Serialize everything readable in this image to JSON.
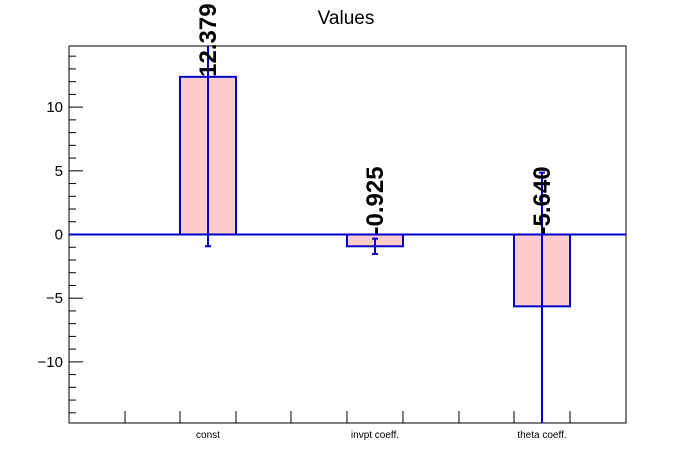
{
  "chart_data": {
    "type": "bar",
    "title": "Values",
    "categories": [
      "const",
      "invpt coeff.",
      "theta coeff."
    ],
    "values": [
      12.379,
      -0.925,
      -5.64
    ],
    "value_labels": [
      "12.379",
      "-0.925",
      "-5.640"
    ],
    "errors": [
      13.3,
      0.6,
      10.5
    ],
    "ylim": [
      -14.8,
      14.8
    ],
    "yticks": [
      -10,
      -5,
      0,
      5,
      10
    ],
    "ytick_labels": [
      "−10",
      "−5",
      "0",
      "5",
      "10"
    ],
    "xlabel": "",
    "ylabel": "",
    "grid": false,
    "colors": {
      "bar_fill": "#ffcccc",
      "bar_edge": "#0000cc",
      "axis": "#000000"
    }
  }
}
